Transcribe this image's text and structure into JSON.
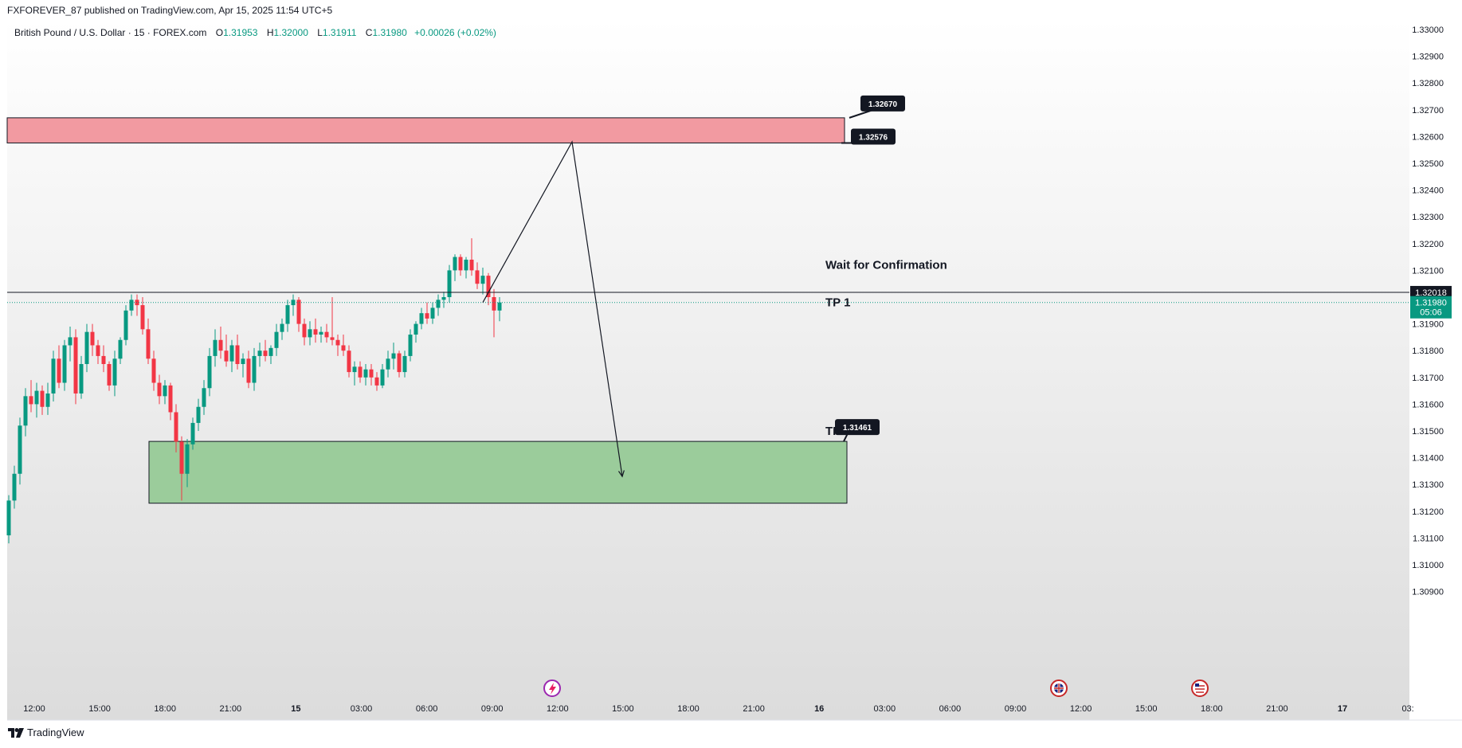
{
  "header": {
    "published": "FXFOREVER_87 published on TradingView.com, Apr 15, 2025 11:54 UTC+5"
  },
  "legend": {
    "symbol": "British Pound / U.S. Dollar · 15 · FOREX.com",
    "o_label": "O",
    "o": "1.31953",
    "h_label": "H",
    "h": "1.32000",
    "l_label": "L",
    "l": "1.31911",
    "c_label": "C",
    "c": "1.31980",
    "change": "+0.00026 (+0.02%)"
  },
  "footer": {
    "brand": "TradingView"
  },
  "chart_data": {
    "type": "candlestick",
    "y_axis": {
      "min": 1.3085,
      "max": 1.3308,
      "ticks": [
        "1.33000",
        "1.32900",
        "1.32800",
        "1.32700",
        "1.32600",
        "1.32500",
        "1.32400",
        "1.32300",
        "1.32200",
        "1.32100",
        "1.32000",
        "1.31900",
        "1.31800",
        "1.31700",
        "1.31600",
        "1.31500",
        "1.31400",
        "1.31300",
        "1.31200",
        "1.31100",
        "1.31000",
        "1.30900"
      ]
    },
    "x_axis": {
      "ticks": [
        {
          "label": "12:00",
          "bold": false
        },
        {
          "label": "15:00",
          "bold": false
        },
        {
          "label": "18:00",
          "bold": false
        },
        {
          "label": "21:00",
          "bold": false
        },
        {
          "label": "15",
          "bold": true
        },
        {
          "label": "03:00",
          "bold": false
        },
        {
          "label": "06:00",
          "bold": false
        },
        {
          "label": "09:00",
          "bold": false
        },
        {
          "label": "12:00",
          "bold": false
        },
        {
          "label": "15:00",
          "bold": false
        },
        {
          "label": "18:00",
          "bold": false
        },
        {
          "label": "21:00",
          "bold": false
        },
        {
          "label": "16",
          "bold": true
        },
        {
          "label": "03:00",
          "bold": false
        },
        {
          "label": "06:00",
          "bold": false
        },
        {
          "label": "09:00",
          "bold": false
        },
        {
          "label": "12:00",
          "bold": false
        },
        {
          "label": "15:00",
          "bold": false
        },
        {
          "label": "18:00",
          "bold": false
        },
        {
          "label": "21:00",
          "bold": false
        },
        {
          "label": "17",
          "bold": true
        },
        {
          "label": "03:",
          "bold": false
        }
      ]
    },
    "candles": [
      [
        1.3111,
        1.3126,
        1.3108,
        1.3124
      ],
      [
        1.3124,
        1.3137,
        1.3121,
        1.3134
      ],
      [
        1.3134,
        1.3155,
        1.313,
        1.3152
      ],
      [
        1.3152,
        1.3166,
        1.3148,
        1.3163
      ],
      [
        1.3163,
        1.3169,
        1.3157,
        1.316
      ],
      [
        1.316,
        1.3168,
        1.3155,
        1.3165
      ],
      [
        1.3165,
        1.3167,
        1.3156,
        1.3159
      ],
      [
        1.3159,
        1.3168,
        1.3156,
        1.3164
      ],
      [
        1.3164,
        1.318,
        1.3161,
        1.3177
      ],
      [
        1.3177,
        1.3182,
        1.3166,
        1.3168
      ],
      [
        1.3168,
        1.3184,
        1.3165,
        1.3182
      ],
      [
        1.3182,
        1.3189,
        1.3176,
        1.3185
      ],
      [
        1.3185,
        1.3188,
        1.316,
        1.3164
      ],
      [
        1.3164,
        1.3178,
        1.3162,
        1.3175
      ],
      [
        1.3175,
        1.319,
        1.3172,
        1.3187
      ],
      [
        1.3187,
        1.319,
        1.3178,
        1.3182
      ],
      [
        1.3182,
        1.3184,
        1.3175,
        1.3178
      ],
      [
        1.3178,
        1.3182,
        1.3172,
        1.3175
      ],
      [
        1.3175,
        1.3176,
        1.3165,
        1.3167
      ],
      [
        1.3167,
        1.318,
        1.3163,
        1.3177
      ],
      [
        1.3177,
        1.3185,
        1.3175,
        1.3184
      ],
      [
        1.3184,
        1.3197,
        1.3182,
        1.3195
      ],
      [
        1.3195,
        1.3201,
        1.3193,
        1.3199
      ],
      [
        1.3199,
        1.3201,
        1.3193,
        1.3197
      ],
      [
        1.3197,
        1.32,
        1.3186,
        1.3188
      ],
      [
        1.3188,
        1.3192,
        1.3175,
        1.3177
      ],
      [
        1.3177,
        1.318,
        1.3165,
        1.3168
      ],
      [
        1.3168,
        1.3171,
        1.316,
        1.3163
      ],
      [
        1.3163,
        1.3169,
        1.316,
        1.3167
      ],
      [
        1.3167,
        1.3168,
        1.3154,
        1.3157
      ],
      [
        1.3157,
        1.316,
        1.3142,
        1.3146
      ],
      [
        1.3146,
        1.3148,
        1.3124,
        1.3134
      ],
      [
        1.3134,
        1.3147,
        1.3129,
        1.3145
      ],
      [
        1.3145,
        1.3155,
        1.3143,
        1.3153
      ],
      [
        1.3153,
        1.3162,
        1.315,
        1.3159
      ],
      [
        1.3159,
        1.3169,
        1.3156,
        1.3166
      ],
      [
        1.3166,
        1.3181,
        1.3163,
        1.3178
      ],
      [
        1.3178,
        1.3188,
        1.3174,
        1.3184
      ],
      [
        1.3184,
        1.3189,
        1.3177,
        1.318
      ],
      [
        1.318,
        1.3186,
        1.3174,
        1.3176
      ],
      [
        1.3176,
        1.3184,
        1.3172,
        1.3182
      ],
      [
        1.3182,
        1.3186,
        1.3173,
        1.3175
      ],
      [
        1.3175,
        1.3179,
        1.317,
        1.3177
      ],
      [
        1.3177,
        1.318,
        1.3166,
        1.3168
      ],
      [
        1.3168,
        1.3181,
        1.3165,
        1.3178
      ],
      [
        1.3178,
        1.3183,
        1.3174,
        1.318
      ],
      [
        1.318,
        1.3184,
        1.3176,
        1.3178
      ],
      [
        1.3178,
        1.3182,
        1.3175,
        1.3181
      ],
      [
        1.3181,
        1.319,
        1.3178,
        1.3187
      ],
      [
        1.3187,
        1.3192,
        1.3184,
        1.319
      ],
      [
        1.319,
        1.3199,
        1.3187,
        1.3197
      ],
      [
        1.3197,
        1.3201,
        1.3193,
        1.3199
      ],
      [
        1.3199,
        1.32,
        1.3187,
        1.319
      ],
      [
        1.319,
        1.3192,
        1.3182,
        1.3185
      ],
      [
        1.3185,
        1.3191,
        1.3182,
        1.3188
      ],
      [
        1.3188,
        1.3192,
        1.3183,
        1.3186
      ],
      [
        1.3186,
        1.3189,
        1.3183,
        1.3187
      ],
      [
        1.3187,
        1.319,
        1.3183,
        1.3185
      ],
      [
        1.3185,
        1.32,
        1.3182,
        1.3184
      ],
      [
        1.3184,
        1.3186,
        1.3178,
        1.3182
      ],
      [
        1.3182,
        1.3186,
        1.3178,
        1.318
      ],
      [
        1.318,
        1.3182,
        1.317,
        1.3172
      ],
      [
        1.3172,
        1.3176,
        1.3167,
        1.3174
      ],
      [
        1.3174,
        1.3176,
        1.3168,
        1.317
      ],
      [
        1.317,
        1.3175,
        1.3167,
        1.3173
      ],
      [
        1.3173,
        1.3175,
        1.3167,
        1.317
      ],
      [
        1.317,
        1.3172,
        1.3165,
        1.3167
      ],
      [
        1.3167,
        1.3175,
        1.3166,
        1.3173
      ],
      [
        1.3173,
        1.318,
        1.317,
        1.3177
      ],
      [
        1.3177,
        1.3183,
        1.3173,
        1.3179
      ],
      [
        1.3179,
        1.318,
        1.317,
        1.3172
      ],
      [
        1.3172,
        1.318,
        1.317,
        1.3178
      ],
      [
        1.3178,
        1.3188,
        1.3176,
        1.3186
      ],
      [
        1.3186,
        1.3191,
        1.3183,
        1.319
      ],
      [
        1.319,
        1.3196,
        1.3188,
        1.3194
      ],
      [
        1.3194,
        1.3198,
        1.319,
        1.3192
      ],
      [
        1.3192,
        1.3198,
        1.319,
        1.3196
      ],
      [
        1.3196,
        1.3201,
        1.3193,
        1.3199
      ],
      [
        1.3199,
        1.3202,
        1.3196,
        1.32
      ],
      [
        1.32,
        1.3212,
        1.3198,
        1.321
      ],
      [
        1.321,
        1.3216,
        1.3206,
        1.3215
      ],
      [
        1.3215,
        1.3216,
        1.3208,
        1.321
      ],
      [
        1.321,
        1.3215,
        1.3207,
        1.3214
      ],
      [
        1.3214,
        1.3222,
        1.3208,
        1.321
      ],
      [
        1.321,
        1.3213,
        1.3203,
        1.3205
      ],
      [
        1.3205,
        1.3211,
        1.3201,
        1.3208
      ],
      [
        1.3208,
        1.3209,
        1.3197,
        1.32
      ],
      [
        1.32,
        1.3203,
        1.3185,
        1.3195
      ],
      [
        1.3195,
        1.32,
        1.3191,
        1.3198
      ]
    ],
    "current_price": {
      "value": 1.3198,
      "label": "1.31980",
      "countdown": "05:06"
    },
    "horizontal_level": {
      "value": 1.32018,
      "label": "1.32018"
    },
    "zones": [
      {
        "name": "supply-zone",
        "top": 1.3267,
        "bottom": 1.32576,
        "color": "#f29aa1"
      },
      {
        "name": "demand-zone",
        "top": 1.31461,
        "bottom": 1.3123,
        "color": "#9bcc9b"
      }
    ],
    "callouts": [
      {
        "label": "1.32670",
        "value": 1.3267
      },
      {
        "label": "1.32576",
        "value": 1.32576
      },
      {
        "label": "1.31461",
        "value": 1.31461
      }
    ],
    "annotations": [
      {
        "text": "Wait for Confirmation",
        "value": 1.3212
      },
      {
        "text": "TP 1",
        "value": 1.3198
      },
      {
        "text": "TP 2",
        "value": 1.315
      }
    ],
    "path": [
      {
        "candle": 85,
        "value": 1.3198
      },
      {
        "candle": 101,
        "value": 1.3258
      },
      {
        "candle": 110,
        "value": 1.3133
      }
    ],
    "colors": {
      "up": "#089981",
      "down": "#f23645",
      "axis_text": "#131722",
      "current_bg": "#089981",
      "level_bg": "#131722"
    }
  }
}
